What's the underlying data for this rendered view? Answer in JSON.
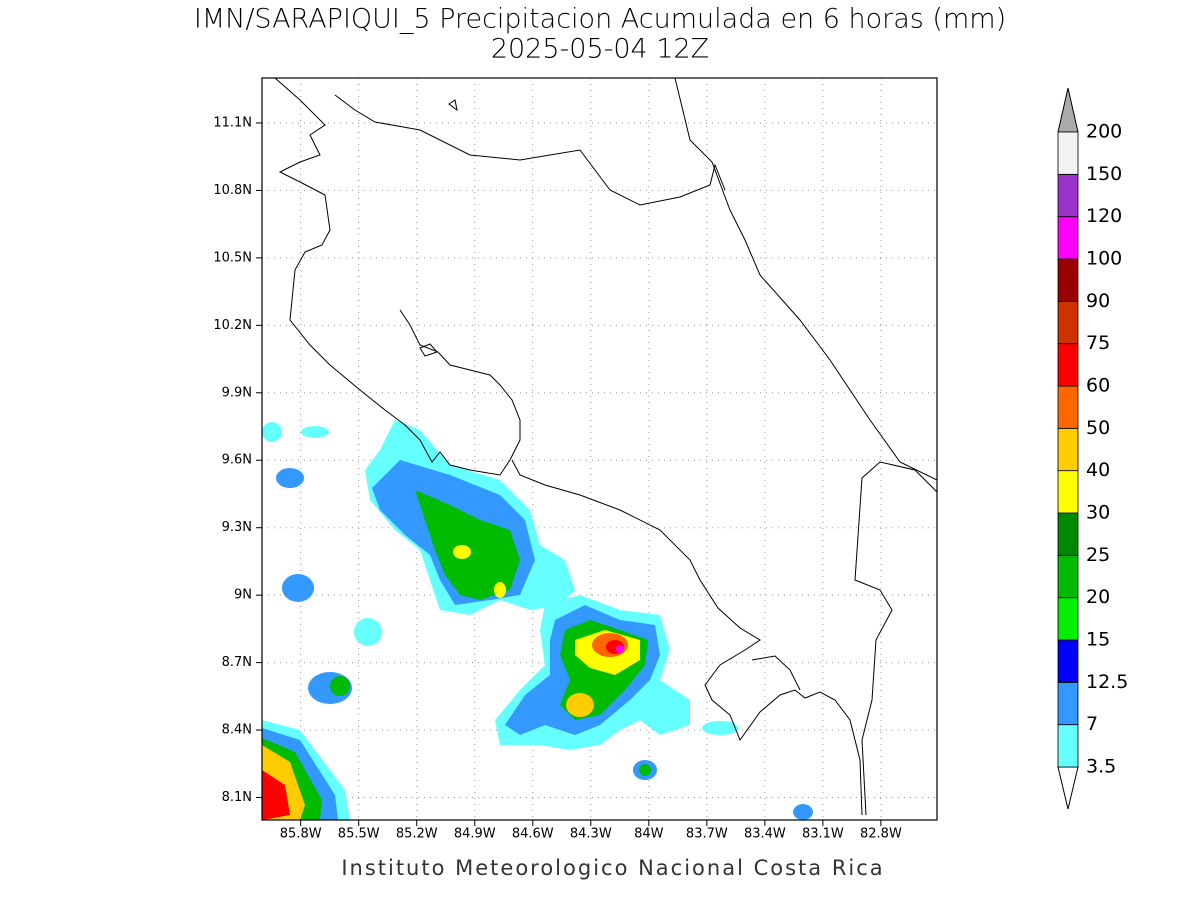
{
  "chart_data": {
    "type": "map",
    "title": "IMN/SARAPIQUI_5 Precipitacion Acumulada en 6 horas (mm)",
    "subtitle": "2025-05-04 12Z",
    "xlim": [
      -86.0,
      -82.51
    ],
    "ylim": [
      8.0,
      11.3
    ],
    "xticks": [
      {
        "value": -85.8,
        "label": "85.8W"
      },
      {
        "value": -85.5,
        "label": "85.5W"
      },
      {
        "value": -85.2,
        "label": "85.2W"
      },
      {
        "value": -84.9,
        "label": "84.9W"
      },
      {
        "value": -84.6,
        "label": "84.6W"
      },
      {
        "value": -84.3,
        "label": "84.3W"
      },
      {
        "value": -84,
        "label": "84W"
      },
      {
        "value": -83.7,
        "label": "83.7W"
      },
      {
        "value": -83.4,
        "label": "83.4W"
      },
      {
        "value": -83.1,
        "label": "83.1W"
      },
      {
        "value": -82.8,
        "label": "82.8W"
      }
    ],
    "yticks": [
      {
        "value": 8.1,
        "label": "8.1N"
      },
      {
        "value": 8.4,
        "label": "8.4N"
      },
      {
        "value": 8.7,
        "label": "8.7N"
      },
      {
        "value": 9,
        "label": "9N"
      },
      {
        "value": 9.3,
        "label": "9.3N"
      },
      {
        "value": 9.6,
        "label": "9.6N"
      },
      {
        "value": 9.9,
        "label": "9.9N"
      },
      {
        "value": 10.2,
        "label": "10.2N"
      },
      {
        "value": 10.5,
        "label": "10.5N"
      },
      {
        "value": 10.8,
        "label": "10.8N"
      },
      {
        "value": 11.1,
        "label": "11.1N"
      }
    ],
    "grid": true,
    "colorbar": {
      "levels": [
        3.5,
        7,
        12.5,
        15,
        20,
        25,
        30,
        40,
        50,
        60,
        75,
        90,
        100,
        120,
        150,
        200
      ],
      "colors": [
        "#66ffff",
        "#3399ff",
        "#0000ff",
        "#00ee00",
        "#00bb00",
        "#008800",
        "#ffff00",
        "#ffcc00",
        "#ff6600",
        "#ff0000",
        "#cc3300",
        "#990000",
        "#ff00ff",
        "#9933cc",
        "#f2f2f2"
      ],
      "under_color": "#ffffff",
      "over_color": "#aaaaaa"
    },
    "credit": "Instituto Meteorologico Nacional Costa Rica"
  }
}
